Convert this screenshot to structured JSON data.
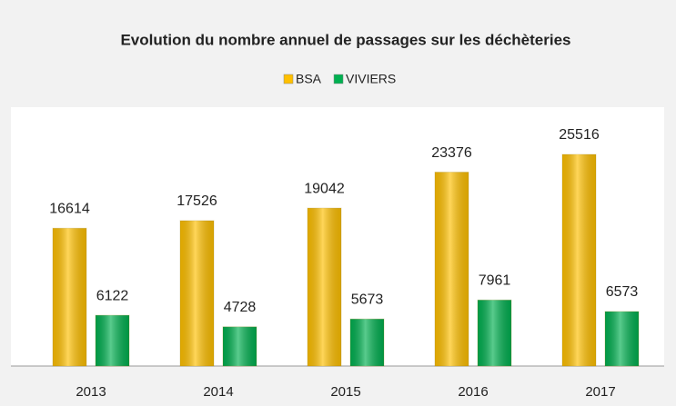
{
  "chart_data": {
    "type": "bar",
    "title": "Evolution du nombre annuel de passages sur les déchèteries",
    "categories": [
      "2013",
      "2014",
      "2015",
      "2016",
      "2017"
    ],
    "series": [
      {
        "name": "BSA",
        "color": "#ffc000",
        "values": [
          16614,
          17526,
          19042,
          23376,
          25516
        ]
      },
      {
        "name": "VIVIERS",
        "color": "#00b050",
        "values": [
          6122,
          4728,
          5673,
          7961,
          6573
        ]
      }
    ]
  }
}
